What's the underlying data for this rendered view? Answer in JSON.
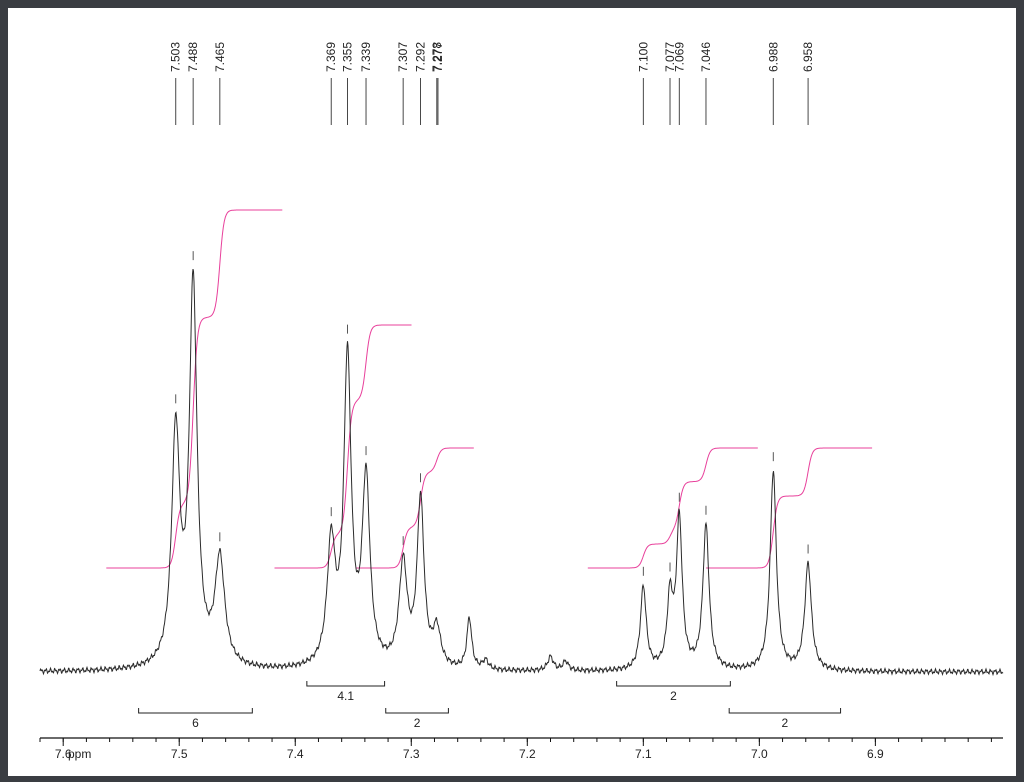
{
  "chart_data": {
    "type": "line",
    "title": "",
    "xlabel": "ppm",
    "ylabel": "",
    "x_reversed": true,
    "xlim": [
      7.62,
      6.79
    ],
    "ylim": [
      0,
      1.0
    ],
    "grid": false,
    "x_ticks": [
      7.6,
      7.5,
      7.4,
      7.3,
      7.2,
      7.1,
      7.0,
      6.9
    ],
    "x_tick_labels": [
      "7.6",
      "7.5",
      "7.4",
      "7.3",
      "7.2",
      "7.1",
      "7.0",
      "6.9"
    ],
    "peak_labels": [
      "7.503",
      "7.488",
      "7.465",
      "7.369",
      "7.355",
      "7.339",
      "7.307",
      "7.292",
      "7.278",
      "7.277",
      "7.100",
      "7.077",
      "7.069",
      "7.046",
      "6.988",
      "6.958"
    ],
    "peaks": [
      {
        "ppm": 7.503,
        "height": 0.5,
        "width": 0.0042
      },
      {
        "ppm": 7.488,
        "height": 0.82,
        "width": 0.004
      },
      {
        "ppm": 7.465,
        "height": 0.23,
        "width": 0.005
      },
      {
        "ppm": 7.369,
        "height": 0.26,
        "width": 0.0042
      },
      {
        "ppm": 7.355,
        "height": 0.66,
        "width": 0.0038
      },
      {
        "ppm": 7.339,
        "height": 0.4,
        "width": 0.004
      },
      {
        "ppm": 7.307,
        "height": 0.22,
        "width": 0.0042
      },
      {
        "ppm": 7.292,
        "height": 0.36,
        "width": 0.0036
      },
      {
        "ppm": 7.278,
        "height": 0.08,
        "width": 0.004
      },
      {
        "ppm": 7.25,
        "height": 0.11,
        "width": 0.0025
      },
      {
        "ppm": 7.236,
        "height": 0.02,
        "width": 0.003
      },
      {
        "ppm": 7.18,
        "height": 0.03,
        "width": 0.003
      },
      {
        "ppm": 7.167,
        "height": 0.02,
        "width": 0.003
      },
      {
        "ppm": 7.1,
        "height": 0.18,
        "width": 0.003
      },
      {
        "ppm": 7.077,
        "height": 0.15,
        "width": 0.003
      },
      {
        "ppm": 7.069,
        "height": 0.32,
        "width": 0.003
      },
      {
        "ppm": 7.046,
        "height": 0.31,
        "width": 0.0032
      },
      {
        "ppm": 6.988,
        "height": 0.43,
        "width": 0.0032
      },
      {
        "ppm": 6.958,
        "height": 0.23,
        "width": 0.0034
      }
    ],
    "integrals": [
      {
        "label": "6",
        "from": 7.535,
        "to": 7.437,
        "tier": 2
      },
      {
        "label": "4.1",
        "from": 7.39,
        "to": 7.323,
        "tier": 1
      },
      {
        "label": "2",
        "from": 7.322,
        "to": 7.268,
        "tier": 2
      },
      {
        "label": "2",
        "from": 7.123,
        "to": 7.025,
        "tier": 1
      },
      {
        "label": "2",
        "from": 7.026,
        "to": 6.93,
        "tier": 2
      }
    ],
    "integral_curves": [
      {
        "from": 7.537,
        "to": 7.437,
        "steps": [
          [
            7.503,
            0.18
          ],
          [
            7.488,
            0.52
          ],
          [
            7.465,
            0.3
          ]
        ]
      },
      {
        "from": 7.392,
        "to": 7.325,
        "steps": [
          [
            7.369,
            0.14
          ],
          [
            7.355,
            0.55
          ],
          [
            7.339,
            0.31
          ]
        ]
      },
      {
        "from": 7.322,
        "to": 7.272,
        "steps": [
          [
            7.307,
            0.34
          ],
          [
            7.292,
            0.46
          ],
          [
            7.278,
            0.2
          ]
        ]
      },
      {
        "from": 7.122,
        "to": 7.027,
        "steps": [
          [
            7.1,
            0.2
          ],
          [
            7.077,
            0.12
          ],
          [
            7.069,
            0.4
          ],
          [
            7.046,
            0.28
          ]
        ]
      },
      {
        "from": 7.02,
        "to": 6.928,
        "steps": [
          [
            6.988,
            0.6
          ],
          [
            6.958,
            0.4
          ]
        ]
      }
    ],
    "colors": {
      "spectrum": "#2b2b2b",
      "integral_curve": "#e8409b",
      "axis": "#111111"
    }
  }
}
